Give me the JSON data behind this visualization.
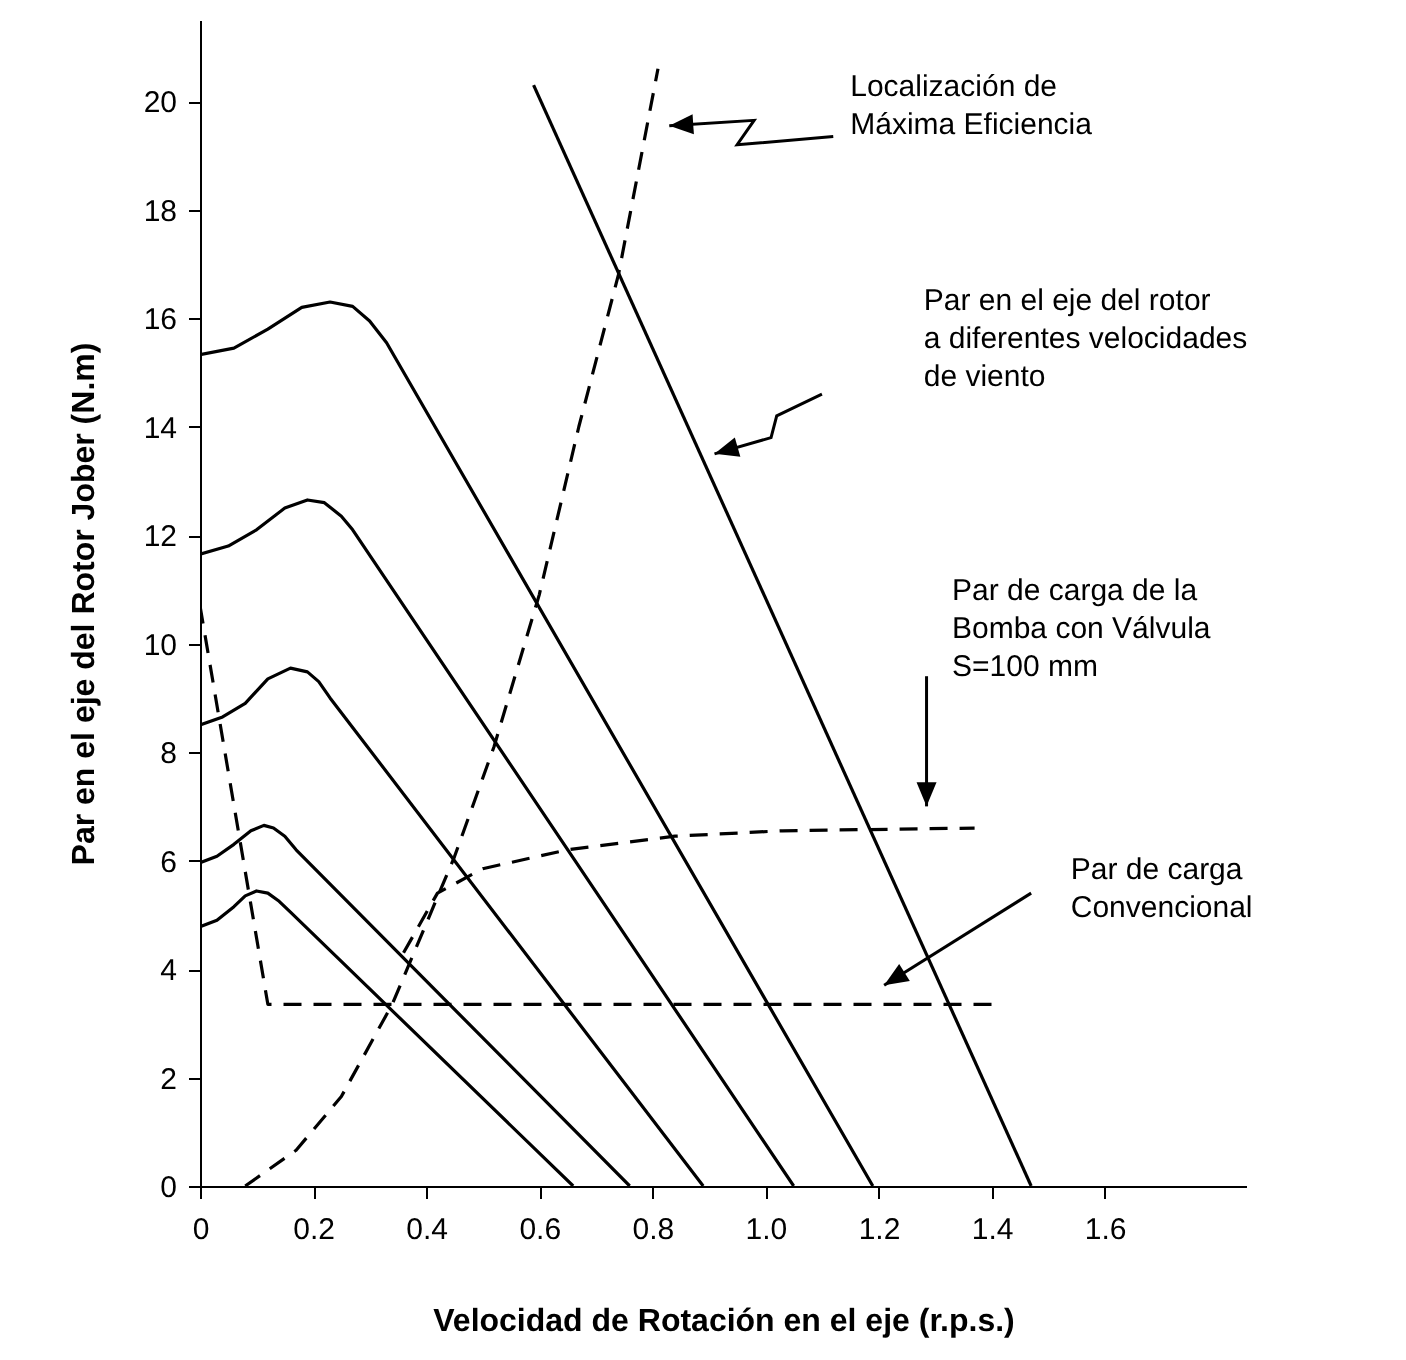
{
  "chart_data": {
    "type": "line",
    "xlabel": "Velocidad de Rotación en el eje (r.p.s.)",
    "ylabel": "Par en el eje del Rotor Jober (N.m)",
    "xlim": [
      0,
      1.85
    ],
    "ylim": [
      0,
      21.5
    ],
    "xticks": [
      {
        "value": 0,
        "label": "0"
      },
      0.2,
      0.4,
      0.6,
      0.8,
      {
        "value": 1,
        "label": "1.0"
      },
      1.2,
      1.4,
      1.6
    ],
    "yticks": [
      0,
      2,
      4,
      6,
      8,
      10,
      12,
      14,
      16,
      18,
      20
    ],
    "grid": false,
    "marker": "none",
    "series": [
      {
        "color": "#000000",
        "line_style": "solid",
        "x": [
          0,
          0.03,
          0.06,
          0.08,
          0.1,
          0.12,
          0.14,
          0.16,
          0.66
        ],
        "values": [
          4.78,
          4.9,
          5.15,
          5.35,
          5.44,
          5.4,
          5.25,
          5.05,
          0
        ]
      },
      {
        "color": "#000000",
        "line_style": "solid",
        "x": [
          0,
          0.03,
          0.06,
          0.09,
          0.113,
          0.13,
          0.15,
          0.17,
          0.76
        ],
        "values": [
          5.96,
          6.08,
          6.3,
          6.55,
          6.65,
          6.6,
          6.45,
          6.2,
          0
        ]
      },
      {
        "color": "#000000",
        "line_style": "solid",
        "x": [
          0,
          0.04,
          0.08,
          0.12,
          0.16,
          0.19,
          0.21,
          0.23,
          0.89
        ],
        "values": [
          8.5,
          8.65,
          8.9,
          9.35,
          9.55,
          9.48,
          9.3,
          9.0,
          0
        ]
      },
      {
        "color": "#000000",
        "line_style": "solid",
        "x": [
          0,
          0.05,
          0.1,
          0.15,
          0.19,
          0.22,
          0.25,
          0.27,
          1.05
        ],
        "values": [
          11.65,
          11.8,
          12.1,
          12.5,
          12.65,
          12.6,
          12.35,
          12.1,
          0
        ]
      },
      {
        "color": "#000000",
        "line_style": "solid",
        "x": [
          0,
          0.06,
          0.12,
          0.18,
          0.23,
          0.27,
          0.3,
          0.33,
          1.19
        ],
        "values": [
          15.33,
          15.45,
          15.8,
          16.2,
          16.3,
          16.22,
          15.95,
          15.55,
          0
        ]
      },
      {
        "color": "#000000",
        "line_style": "solid",
        "x": [
          0.59,
          1.47
        ],
        "values": [
          20.3,
          0
        ]
      },
      {
        "color": "#000000",
        "line_style": "dashed",
        "x": [
          0.08,
          0.17,
          0.25,
          0.34,
          0.45,
          0.52,
          0.6,
          0.67,
          0.74,
          0.81
        ],
        "values": [
          0,
          0.66,
          1.65,
          3.35,
          6.07,
          8.1,
          10.9,
          14,
          16.8,
          20.6
        ]
      },
      {
        "color": "#000000",
        "line_style": "dashed",
        "x": [
          0.36,
          0.42,
          0.5,
          0.65,
          0.84,
          1.03,
          1.37
        ],
        "values": [
          4.3,
          5.4,
          5.85,
          6.2,
          6.45,
          6.55,
          6.6
        ]
      },
      {
        "color": "#000000",
        "line_style": "dashed",
        "x": [
          0,
          0.12,
          1.4
        ],
        "values": [
          10.7,
          3.35,
          3.35
        ]
      }
    ],
    "annotations": [
      "Localización de\nMáxima Eficiencia",
      "Par en el eje del rotor\na diferentes velocidades\nde viento",
      "Par de carga de la\nBomba con Válvula\nS=100 mm",
      "Par de carga\nConvencional"
    ]
  }
}
